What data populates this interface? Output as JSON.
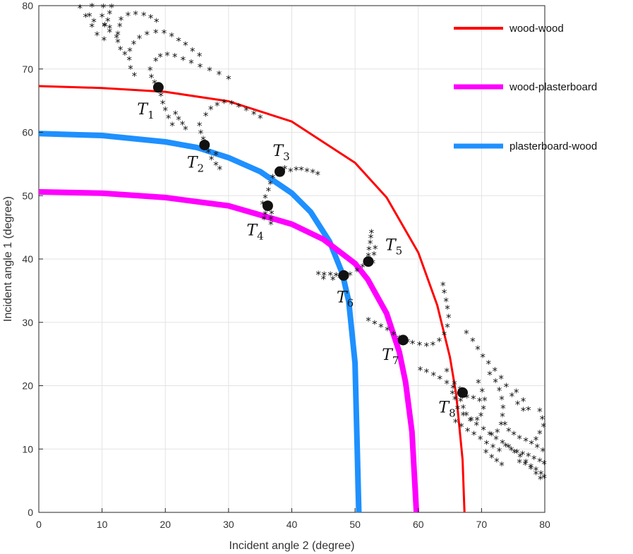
{
  "chart_data": {
    "type": "line",
    "xlabel": "Incident angle 2 (degree)",
    "ylabel": "Incident angle 1 (degree)",
    "xlim": [
      0,
      80
    ],
    "ylim": [
      0,
      80
    ],
    "xticks": [
      0,
      10,
      20,
      30,
      40,
      50,
      60,
      70,
      80
    ],
    "yticks": [
      0,
      10,
      20,
      30,
      40,
      50,
      60,
      70,
      80
    ],
    "grid": true,
    "legend_position": "top-right",
    "series": [
      {
        "name": "wood-wood",
        "color": "#ff0000",
        "x": [
          0,
          10,
          20,
          30,
          40,
          50,
          55,
          60,
          63,
          65,
          66,
          67,
          67.3
        ],
        "y": [
          67.3,
          67.0,
          66.4,
          64.9,
          61.7,
          55.2,
          49.7,
          41.0,
          32.7,
          24.5,
          18.6,
          8.3,
          0
        ]
      },
      {
        "name": "wood-plasterboard",
        "color": "#ff00ff",
        "x": [
          0,
          10,
          20,
          30,
          40,
          45,
          50,
          52,
          55,
          57,
          58,
          59,
          59.7
        ],
        "y": [
          50.6,
          50.4,
          49.7,
          48.4,
          45.5,
          43.1,
          39.3,
          36.8,
          31.4,
          25.3,
          20.5,
          12.7,
          0
        ]
      },
      {
        "name": "plasterboard-wood",
        "color": "#1e90ff",
        "x": [
          0,
          10,
          20,
          25,
          30,
          35,
          40,
          43,
          46,
          48,
          49,
          50,
          50.6
        ],
        "y": [
          59.8,
          59.5,
          58.5,
          57.6,
          56.0,
          53.8,
          50.4,
          47.4,
          42.7,
          37.7,
          33.3,
          23.6,
          0
        ]
      }
    ],
    "points": [
      {
        "label": "T",
        "sub": "1",
        "x": 18.9,
        "y": 67.1
      },
      {
        "label": "T",
        "sub": "2",
        "x": 26.2,
        "y": 58.0
      },
      {
        "label": "T",
        "sub": "3",
        "x": 38.1,
        "y": 53.8
      },
      {
        "label": "T",
        "sub": "4",
        "x": 36.2,
        "y": 48.4
      },
      {
        "label": "T",
        "sub": "5",
        "x": 52.1,
        "y": 39.6
      },
      {
        "label": "T",
        "sub": "6",
        "x": 48.2,
        "y": 37.4
      },
      {
        "label": "T",
        "sub": "7",
        "x": 57.6,
        "y": 27.2
      },
      {
        "label": "T",
        "sub": "8",
        "x": 67.0,
        "y": 18.9
      }
    ],
    "scatter_markers": [
      {
        "name": "trajectories",
        "marker": "*",
        "color": "#000000",
        "points": [
          [
            6.5,
            79.8
          ],
          [
            7.4,
            78.4
          ],
          [
            8.7,
            77.6
          ],
          [
            10.4,
            76.9
          ],
          [
            8.4,
            80.0
          ],
          [
            8.0,
            78.5
          ],
          [
            8.4,
            76.8
          ],
          [
            9.2,
            75.5
          ],
          [
            10.3,
            74.7
          ],
          [
            10.2,
            79.9
          ],
          [
            10.0,
            78.4
          ],
          [
            10.4,
            77.0
          ],
          [
            11.2,
            76.0
          ],
          [
            12.3,
            75.1
          ],
          [
            11.5,
            79.9
          ],
          [
            11.2,
            78.9
          ],
          [
            10.9,
            77.7
          ],
          [
            11.2,
            76.6
          ],
          [
            13.0,
            77.9
          ],
          [
            14.1,
            78.6
          ],
          [
            15.3,
            78.8
          ],
          [
            16.6,
            78.6
          ],
          [
            17.7,
            78.2
          ],
          [
            18.6,
            77.6
          ],
          [
            12.8,
            76.9
          ],
          [
            12.5,
            75.6
          ],
          [
            12.5,
            74.4
          ],
          [
            12.9,
            73.2
          ],
          [
            13.6,
            72.4
          ],
          [
            15.0,
            74.1
          ],
          [
            15.9,
            75.0
          ],
          [
            17.1,
            75.6
          ],
          [
            18.5,
            75.9
          ],
          [
            19.8,
            75.8
          ],
          [
            21.0,
            75.3
          ],
          [
            22.1,
            74.6
          ],
          [
            23.2,
            73.9
          ],
          [
            14.4,
            73.0
          ],
          [
            14.3,
            71.6
          ],
          [
            14.5,
            70.2
          ],
          [
            15.1,
            69.1
          ],
          [
            24.3,
            73.0
          ],
          [
            25.4,
            72.2
          ],
          [
            18.5,
            71.4
          ],
          [
            19.2,
            72.1
          ],
          [
            20.3,
            72.3
          ],
          [
            21.5,
            72.1
          ],
          [
            22.8,
            71.6
          ],
          [
            24.1,
            71.1
          ],
          [
            25.5,
            70.5
          ],
          [
            27.0,
            69.9
          ],
          [
            28.5,
            69.3
          ],
          [
            30.0,
            68.6
          ],
          [
            17.6,
            70.0
          ],
          [
            17.8,
            68.8
          ],
          [
            18.3,
            67.9
          ],
          [
            19.3,
            65.9
          ],
          [
            19.6,
            64.7
          ],
          [
            20.0,
            63.6
          ],
          [
            20.5,
            62.4
          ],
          [
            21.1,
            61.2
          ],
          [
            21.6,
            63.0
          ],
          [
            22.1,
            62.2
          ],
          [
            22.7,
            61.4
          ],
          [
            23.2,
            60.6
          ],
          [
            25.4,
            61.2
          ],
          [
            26.4,
            62.8
          ],
          [
            27.2,
            63.8
          ],
          [
            28.2,
            64.4
          ],
          [
            29.3,
            64.8
          ],
          [
            30.5,
            64.6
          ],
          [
            31.6,
            64.2
          ],
          [
            32.8,
            63.6
          ],
          [
            34.0,
            63.0
          ],
          [
            35.0,
            62.4
          ],
          [
            25.6,
            60.0
          ],
          [
            26.0,
            59.0
          ],
          [
            26.8,
            57.0
          ],
          [
            27.3,
            55.9
          ],
          [
            28.0,
            55.0
          ],
          [
            28.6,
            54.3
          ],
          [
            28.0,
            56.6
          ],
          [
            35.8,
            47.2
          ],
          [
            35.6,
            46.4
          ],
          [
            35.4,
            48.8
          ],
          [
            35.8,
            49.8
          ],
          [
            36.3,
            50.9
          ],
          [
            36.6,
            52.0
          ],
          [
            37.0,
            53.0
          ],
          [
            38.9,
            54.4
          ],
          [
            39.8,
            54.0
          ],
          [
            40.7,
            54.2
          ],
          [
            41.5,
            54.2
          ],
          [
            42.4,
            54.0
          ],
          [
            43.3,
            53.8
          ],
          [
            44.1,
            53.5
          ],
          [
            36.8,
            47.3
          ],
          [
            36.7,
            46.4
          ],
          [
            36.7,
            45.6
          ],
          [
            44.2,
            37.7
          ],
          [
            45.1,
            37.6
          ],
          [
            46.1,
            37.6
          ],
          [
            47.0,
            37.5
          ],
          [
            47.6,
            37.2
          ],
          [
            45.0,
            37.0
          ],
          [
            46.5,
            36.9
          ],
          [
            49.2,
            37.6
          ],
          [
            50.3,
            38.2
          ],
          [
            51.2,
            38.9
          ],
          [
            52.1,
            40.6
          ],
          [
            52.2,
            41.6
          ],
          [
            52.4,
            42.6
          ],
          [
            52.5,
            43.5
          ],
          [
            52.6,
            44.3
          ],
          [
            52.8,
            39.5
          ],
          [
            53.0,
            40.8
          ],
          [
            53.2,
            41.8
          ],
          [
            63.9,
            36.0
          ],
          [
            64.1,
            34.8
          ],
          [
            64.4,
            33.5
          ],
          [
            64.6,
            32.3
          ],
          [
            64.8,
            30.9
          ],
          [
            64.6,
            29.4
          ],
          [
            64.1,
            28.2
          ],
          [
            63.3,
            27.2
          ],
          [
            62.3,
            26.6
          ],
          [
            61.3,
            26.4
          ],
          [
            60.2,
            26.6
          ],
          [
            59.1,
            26.8
          ],
          [
            58.3,
            27.0
          ],
          [
            52.1,
            30.4
          ],
          [
            53.1,
            29.9
          ],
          [
            54.1,
            29.4
          ],
          [
            55.1,
            28.9
          ],
          [
            56.1,
            28.2
          ],
          [
            57.0,
            27.6
          ],
          [
            67.6,
            28.4
          ],
          [
            68.6,
            27.2
          ],
          [
            69.4,
            25.9
          ],
          [
            70.2,
            24.7
          ],
          [
            71.1,
            23.6
          ],
          [
            72.1,
            22.5
          ],
          [
            73.1,
            21.3
          ],
          [
            73.9,
            20.0
          ],
          [
            74.8,
            18.5
          ],
          [
            75.7,
            17.2
          ],
          [
            76.6,
            16.2
          ],
          [
            69.5,
            20.6
          ],
          [
            70.1,
            19.2
          ],
          [
            70.5,
            17.8
          ],
          [
            70.3,
            16.5
          ],
          [
            69.9,
            15.4
          ],
          [
            69.3,
            14.7
          ],
          [
            68.4,
            14.7
          ],
          [
            67.6,
            15.5
          ],
          [
            67.1,
            16.6
          ],
          [
            66.7,
            17.7
          ],
          [
            71.3,
            21.9
          ],
          [
            72.2,
            20.7
          ],
          [
            72.8,
            19.4
          ],
          [
            73.2,
            18.0
          ],
          [
            73.4,
            16.6
          ],
          [
            73.3,
            15.3
          ],
          [
            73.1,
            14.0
          ],
          [
            72.5,
            12.8
          ],
          [
            71.6,
            12.3
          ],
          [
            73.7,
            14.0
          ],
          [
            74.3,
            13.0
          ],
          [
            75.1,
            12.4
          ],
          [
            76.0,
            11.8
          ],
          [
            77.0,
            11.4
          ],
          [
            77.9,
            11.0
          ],
          [
            78.8,
            10.4
          ],
          [
            79.7,
            9.8
          ],
          [
            75.5,
            19.1
          ],
          [
            76.6,
            17.7
          ],
          [
            77.4,
            16.3
          ],
          [
            73.8,
            10.6
          ],
          [
            74.7,
            10.0
          ],
          [
            75.6,
            9.6
          ],
          [
            76.5,
            9.3
          ],
          [
            77.4,
            9.0
          ],
          [
            78.3,
            8.6
          ],
          [
            79.2,
            8.2
          ],
          [
            79.9,
            7.8
          ],
          [
            76.0,
            8.0
          ],
          [
            76.9,
            7.7
          ],
          [
            77.8,
            7.3
          ],
          [
            78.6,
            6.8
          ],
          [
            79.4,
            6.2
          ],
          [
            79.9,
            5.6
          ],
          [
            70.7,
            9.6
          ],
          [
            71.6,
            8.8
          ],
          [
            72.4,
            8.2
          ],
          [
            73.2,
            7.6
          ],
          [
            78.6,
            11.6
          ],
          [
            79.2,
            12.6
          ],
          [
            79.8,
            13.7
          ],
          [
            79.6,
            14.9
          ],
          [
            79.2,
            16.1
          ],
          [
            64.5,
            22.4
          ],
          [
            65.7,
            20.4
          ],
          [
            66.6,
            19.5
          ],
          [
            67.7,
            18.3
          ],
          [
            68.7,
            18.1
          ],
          [
            69.7,
            17.7
          ],
          [
            60.3,
            22.6
          ],
          [
            61.3,
            22.3
          ],
          [
            62.4,
            21.8
          ],
          [
            63.4,
            21.2
          ],
          [
            64.5,
            20.5
          ],
          [
            65.5,
            19.8
          ],
          [
            65.4,
            18.9
          ],
          [
            65.8,
            18.0
          ],
          [
            66.2,
            16.5
          ],
          [
            67.1,
            15.5
          ],
          [
            68.2,
            14.6
          ],
          [
            69.2,
            13.9
          ],
          [
            70.3,
            13.2
          ],
          [
            71.3,
            12.4
          ],
          [
            72.3,
            11.7
          ],
          [
            73.3,
            11.1
          ],
          [
            74.3,
            10.4
          ],
          [
            75.2,
            9.6
          ],
          [
            76.1,
            8.9
          ],
          [
            77.0,
            8.0
          ],
          [
            77.8,
            7.0
          ],
          [
            78.6,
            6.2
          ],
          [
            79.3,
            5.4
          ],
          [
            65.9,
            14.4
          ],
          [
            66.8,
            13.7
          ],
          [
            67.8,
            13.0
          ],
          [
            68.8,
            12.4
          ],
          [
            69.8,
            11.7
          ],
          [
            70.8,
            11.0
          ],
          [
            71.8,
            10.4
          ],
          [
            72.8,
            9.8
          ]
        ]
      }
    ]
  }
}
